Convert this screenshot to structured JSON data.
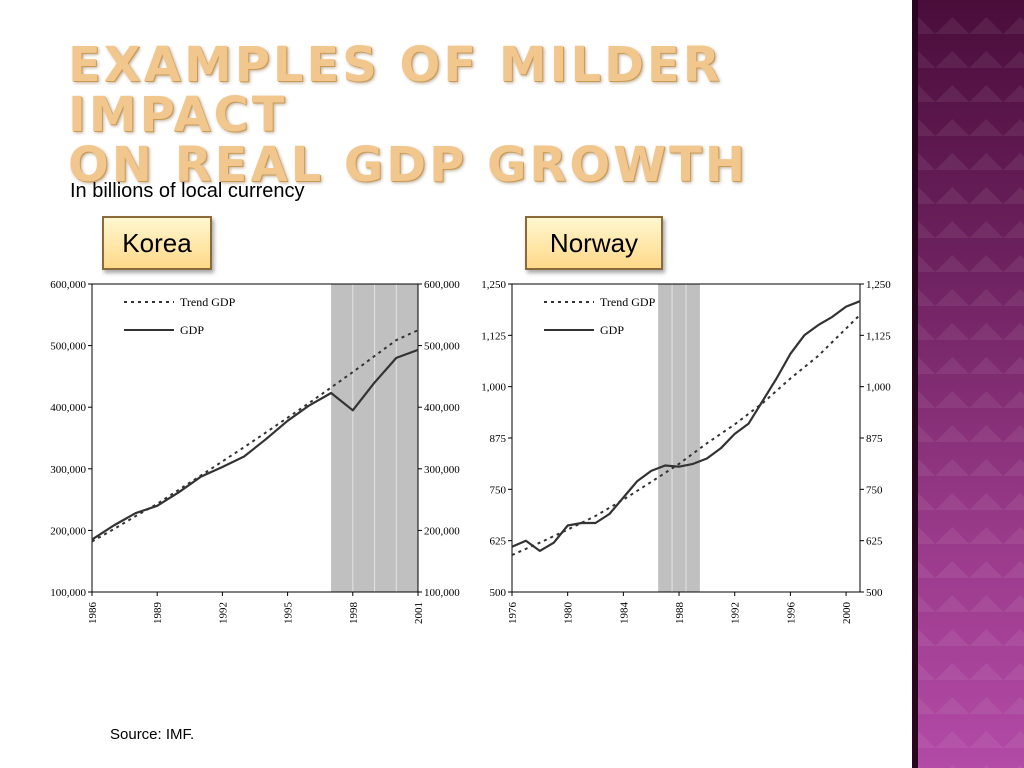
{
  "slide": {
    "title_line1": "Examples of milder impact",
    "title_line2": "on real GDP growth",
    "subtitle": "In billions of local currency",
    "source": "Source: IMF."
  },
  "colors": {
    "accent_title": "#f2c78e",
    "side_band": "#6e2260",
    "recession_shade": "#c0c0c0",
    "series_line": "#333333"
  },
  "chart_data": [
    {
      "type": "line",
      "label": "Korea",
      "legend": [
        "Trend GDP",
        "GDP"
      ],
      "legend_placement": "top-left",
      "x_range": [
        1986,
        2001
      ],
      "x_ticks": [
        "1986",
        "1989",
        "1992",
        "1995",
        "1998",
        "2001"
      ],
      "y_range": [
        100000,
        600000
      ],
      "y_ticks": [
        "100,000",
        "200,000",
        "300,000",
        "400,000",
        "500,000",
        "600,000"
      ],
      "y_axis_both_sides": true,
      "shaded_x": [
        1997,
        2001
      ],
      "shaded_dividers": [
        1998,
        1999,
        2000
      ],
      "series": [
        {
          "name": "Trend GDP",
          "style": "dotted",
          "x": [
            1986,
            1987,
            1988,
            1989,
            1990,
            1991,
            1992,
            1993,
            1994,
            1995,
            1996,
            1997,
            1998,
            1999,
            2000,
            2001
          ],
          "y": [
            182000,
            202000,
            223000,
            243000,
            266000,
            289000,
            312000,
            335000,
            359000,
            383000,
            407000,
            432000,
            457000,
            483000,
            509000,
            525000
          ]
        },
        {
          "name": "GDP",
          "style": "solid",
          "x": [
            1986,
            1987,
            1988,
            1989,
            1990,
            1991,
            1992,
            1993,
            1994,
            1995,
            1996,
            1997,
            1998,
            1999,
            2000,
            2001
          ],
          "y": [
            185000,
            208000,
            228000,
            240000,
            262000,
            287000,
            303000,
            320000,
            348000,
            378000,
            403000,
            423000,
            395000,
            440000,
            480000,
            493000
          ]
        }
      ]
    },
    {
      "type": "line",
      "label": "Norway",
      "legend": [
        "Trend GDP",
        "GDP"
      ],
      "legend_placement": "top-left",
      "x_range": [
        1976,
        2001
      ],
      "x_ticks": [
        "1976",
        "1980",
        "1984",
        "1988",
        "1992",
        "1996",
        "2000"
      ],
      "y_range": [
        500,
        1250
      ],
      "y_ticks": [
        "500",
        "625",
        "750",
        "875",
        "1,000",
        "1,125",
        "1,250"
      ],
      "y_axis_both_sides": true,
      "shaded_x": [
        1986.5,
        1989.5
      ],
      "shaded_dividers": [
        1987.5,
        1988.5
      ],
      "series": [
        {
          "name": "Trend GDP",
          "style": "dotted",
          "x": [
            1976,
            1978,
            1980,
            1982,
            1984,
            1986,
            1988,
            1990,
            1992,
            1994,
            1996,
            1998,
            2001
          ],
          "y": [
            590,
            620,
            652,
            685,
            725,
            768,
            812,
            862,
            908,
            960,
            1020,
            1075,
            1175
          ]
        },
        {
          "name": "GDP",
          "style": "solid",
          "x": [
            1976,
            1977,
            1978,
            1979,
            1980,
            1981,
            1982,
            1983,
            1984,
            1985,
            1986,
            1987,
            1988,
            1989,
            1990,
            1991,
            1992,
            1993,
            1994,
            1995,
            1996,
            1997,
            1998,
            1999,
            2000,
            2001
          ],
          "y": [
            610,
            625,
            600,
            620,
            662,
            668,
            668,
            690,
            730,
            770,
            795,
            808,
            805,
            812,
            825,
            850,
            885,
            910,
            965,
            1020,
            1080,
            1125,
            1150,
            1170,
            1195,
            1208
          ]
        }
      ]
    }
  ]
}
